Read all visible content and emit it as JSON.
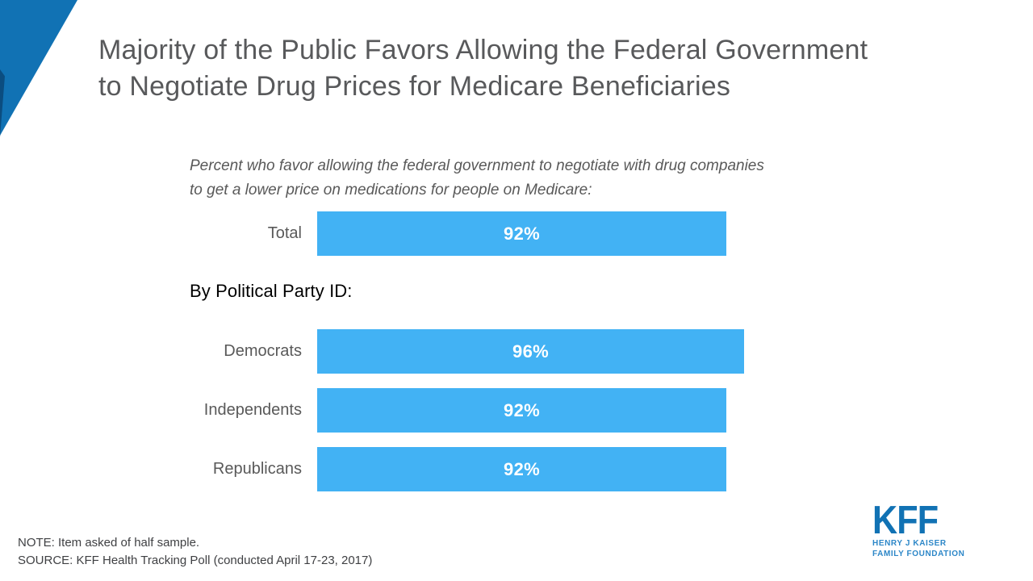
{
  "slide": {
    "title_lines": [
      "Majority of the Public Favors Allowing the Federal Government",
      "to Negotiate Drug Prices for Medicare Beneficiaries"
    ],
    "note": "NOTE: Item asked of half sample.",
    "source": "SOURCE: KFF Health Tracking Poll (conducted April 17-23, 2017)"
  },
  "chart_data": {
    "type": "bar",
    "orientation": "horizontal",
    "title": "Majority of the Public Favors Allowing the Federal Government to Negotiate Drug Prices for Medicare Beneficiaries",
    "subtitle_lines": [
      "Percent who favor allowing the federal government to negotiate with drug companies",
      "to get a lower price on medications for people on Medicare:"
    ],
    "group_heading": "By Political Party ID:",
    "categories": [
      "Total",
      "Democrats",
      "Independents",
      "Republicans"
    ],
    "values": [
      92,
      96,
      92,
      92
    ],
    "value_labels": [
      "92%",
      "96%",
      "92%",
      "92%"
    ],
    "xlim": [
      0,
      100
    ],
    "grid": false,
    "legend": "none",
    "bar_color": "#42b2f4",
    "value_label_color": "#ffffff"
  },
  "logo": {
    "kff": "KFF",
    "sub_line1": "HENRY J KAISER",
    "sub_line2": "FAMILY FOUNDATION"
  },
  "colors": {
    "accent_blue": "#1172b4",
    "accent_blue_dark": "#0b4d80",
    "bar_blue": "#42b2f4",
    "title_gray": "#58595b"
  }
}
